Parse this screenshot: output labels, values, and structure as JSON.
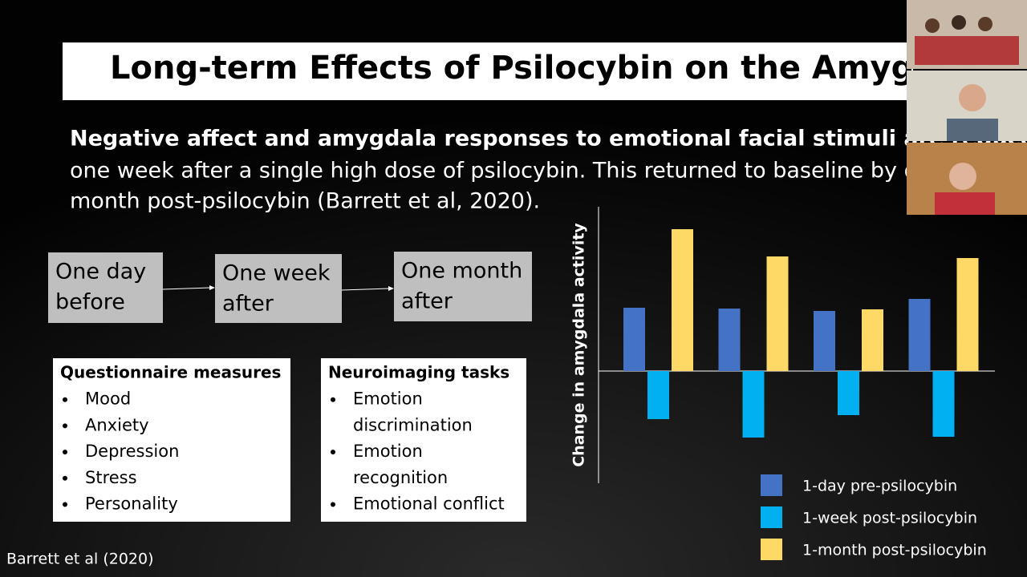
{
  "slide": {
    "title": "Long-term Effects of Psilocybin on the Amygdala",
    "summary_bold": "Negative affect and amygdala responses to emotional facial stimuli are reduced",
    "summary_lines": [
      "one week after a single high dose of psilocybin. This returned to baseline by one",
      "month post-psilocybin (Barrett et al, 2020)."
    ],
    "timeline": [
      [
        "One day",
        "before"
      ],
      [
        "One week",
        "after"
      ],
      [
        "One month",
        "after"
      ]
    ],
    "lists": [
      {
        "heading": "Questionnaire measures",
        "items": [
          [
            "Mood"
          ],
          [
            "Anxiety"
          ],
          [
            "Depression"
          ],
          [
            "Stress"
          ],
          [
            "Personality"
          ]
        ]
      },
      {
        "heading": "Neuroimaging tasks",
        "items": [
          [
            "Emotion",
            "discrimination"
          ],
          [
            "Emotion",
            "recognition"
          ],
          [
            "Emotional conflict"
          ]
        ]
      }
    ],
    "footnote": "Barrett et al (2020)"
  },
  "chart_data": {
    "type": "bar",
    "y_label": "Change in amygdala activity",
    "categories": [
      null,
      null,
      null,
      null
    ],
    "series": [
      {
        "name": "1-day pre-psilocybin",
        "color": "#4472c4",
        "values": [
          7.9,
          7.8,
          7.5,
          9.0
        ]
      },
      {
        "name": "1-week post-psilocybin",
        "color": "#00b0f0",
        "values": [
          -6.0,
          -8.3,
          -5.5,
          -8.2
        ]
      },
      {
        "name": "1-month post-psilocybin",
        "color": "#ffd966",
        "values": [
          17.7,
          14.3,
          7.7,
          14.1
        ]
      }
    ],
    "ylim": [
      -14,
      20.5
    ]
  }
}
